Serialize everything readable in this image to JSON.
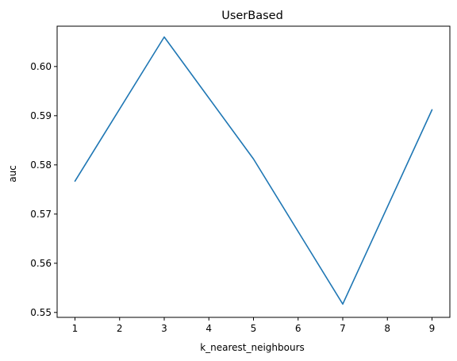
{
  "chart_data": {
    "type": "line",
    "title": "UserBased",
    "xlabel": "k_nearest_neighbours",
    "ylabel": "auc",
    "x": [
      1,
      3,
      5,
      7,
      9
    ],
    "series": [
      {
        "values": [
          0.5767,
          0.606,
          0.5812,
          0.5517,
          0.5912
        ],
        "color": "#1f77b4"
      }
    ],
    "xlim": [
      0.6,
      9.4
    ],
    "ylim": [
      0.549,
      0.6082
    ],
    "xticks": [
      1,
      2,
      3,
      4,
      5,
      6,
      7,
      8,
      9
    ],
    "yticks": [
      0.55,
      0.56,
      0.57,
      0.58,
      0.59,
      0.6
    ],
    "ytick_labels": [
      "0.55",
      "0.56",
      "0.57",
      "0.58",
      "0.59",
      "0.60"
    ],
    "grid": false,
    "legend": "none"
  }
}
